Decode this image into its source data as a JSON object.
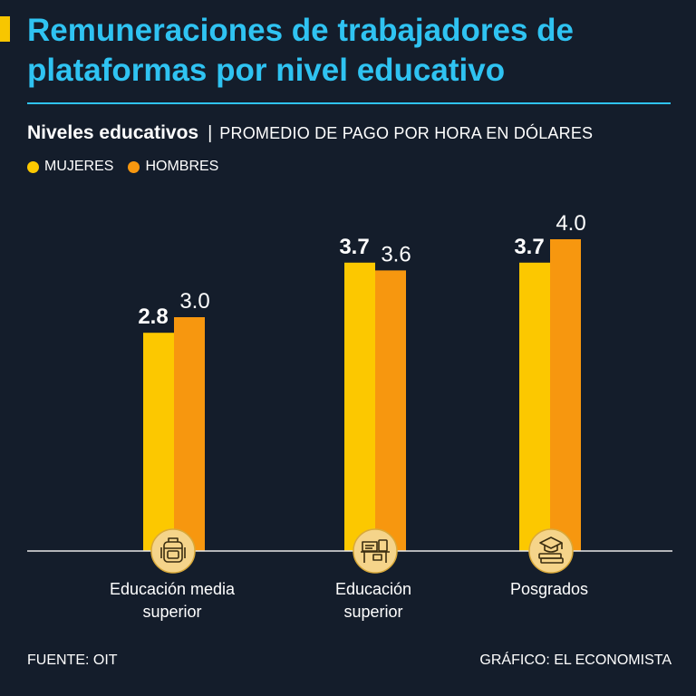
{
  "header": {
    "title": "Remuneraciones de trabajadores de plataformas por nivel educativo",
    "subtitle_lead": "Niveles educativos",
    "subtitle_separator": "|",
    "subtitle_unit": "PROMEDIO DE PAGO POR HORA EN DÓLARES"
  },
  "colors": {
    "background": "#141d2b",
    "title": "#2fc3f2",
    "mujeres": "#fcc800",
    "hombres": "#f7970f",
    "icon_bg": "#f5d48a",
    "icon_stroke": "#3a2d10",
    "axis": "#e8e8e8"
  },
  "chart_data": {
    "type": "bar",
    "title": "Remuneraciones de trabajadores de plataformas por nivel educativo",
    "ylabel": "Promedio de pago por hora en dólares",
    "xlabel": "",
    "ylim": [
      0,
      4.0
    ],
    "grid": false,
    "legend": "top-left",
    "categories": [
      [
        "Educación media",
        "superior"
      ],
      [
        "Educación",
        "superior"
      ],
      [
        "Posgrados"
      ]
    ],
    "category_icons": [
      "backpack-icon",
      "desk-icon",
      "graduation-books-icon"
    ],
    "series": [
      {
        "name": "MUJERES",
        "values": [
          2.8,
          3.7,
          3.7
        ],
        "labels": [
          "2.8",
          "3.7",
          "3.7"
        ]
      },
      {
        "name": "HOMBRES",
        "values": [
          3.0,
          3.6,
          4.0
        ],
        "labels": [
          "3.0",
          "3.6",
          "4.0"
        ]
      }
    ]
  },
  "footer": {
    "source": "FUENTE: OIT",
    "credit": "GRÁFICO: EL ECONOMISTA"
  }
}
